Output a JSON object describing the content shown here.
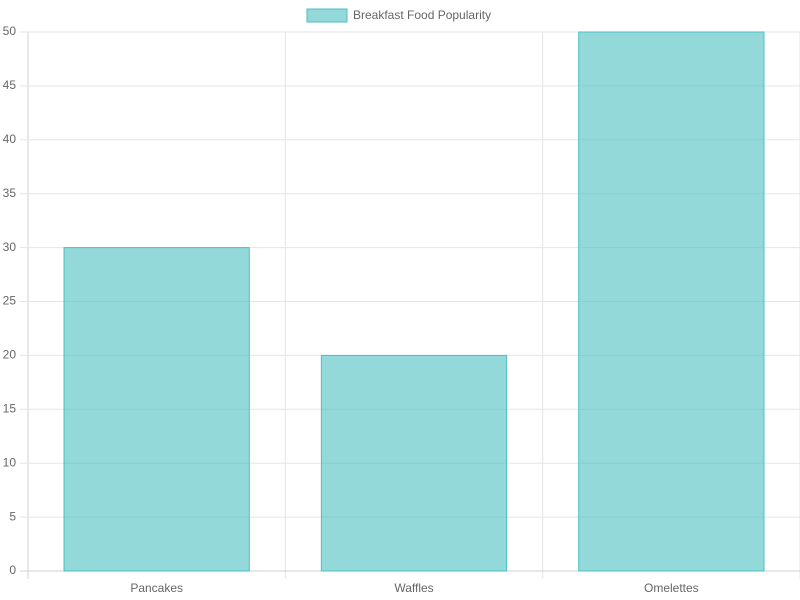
{
  "chart_data": {
    "type": "bar",
    "categories": [
      "Pancakes",
      "Waffles",
      "Omelettes"
    ],
    "series": [
      {
        "name": "Breakfast Food Popularity",
        "color": "#4bc0c0",
        "values": [
          30,
          20,
          50
        ]
      }
    ],
    "ylim": [
      0,
      50
    ],
    "yticks": [
      0,
      5,
      10,
      15,
      20,
      25,
      30,
      35,
      40,
      45,
      50
    ],
    "grid": true,
    "legend": "top"
  }
}
